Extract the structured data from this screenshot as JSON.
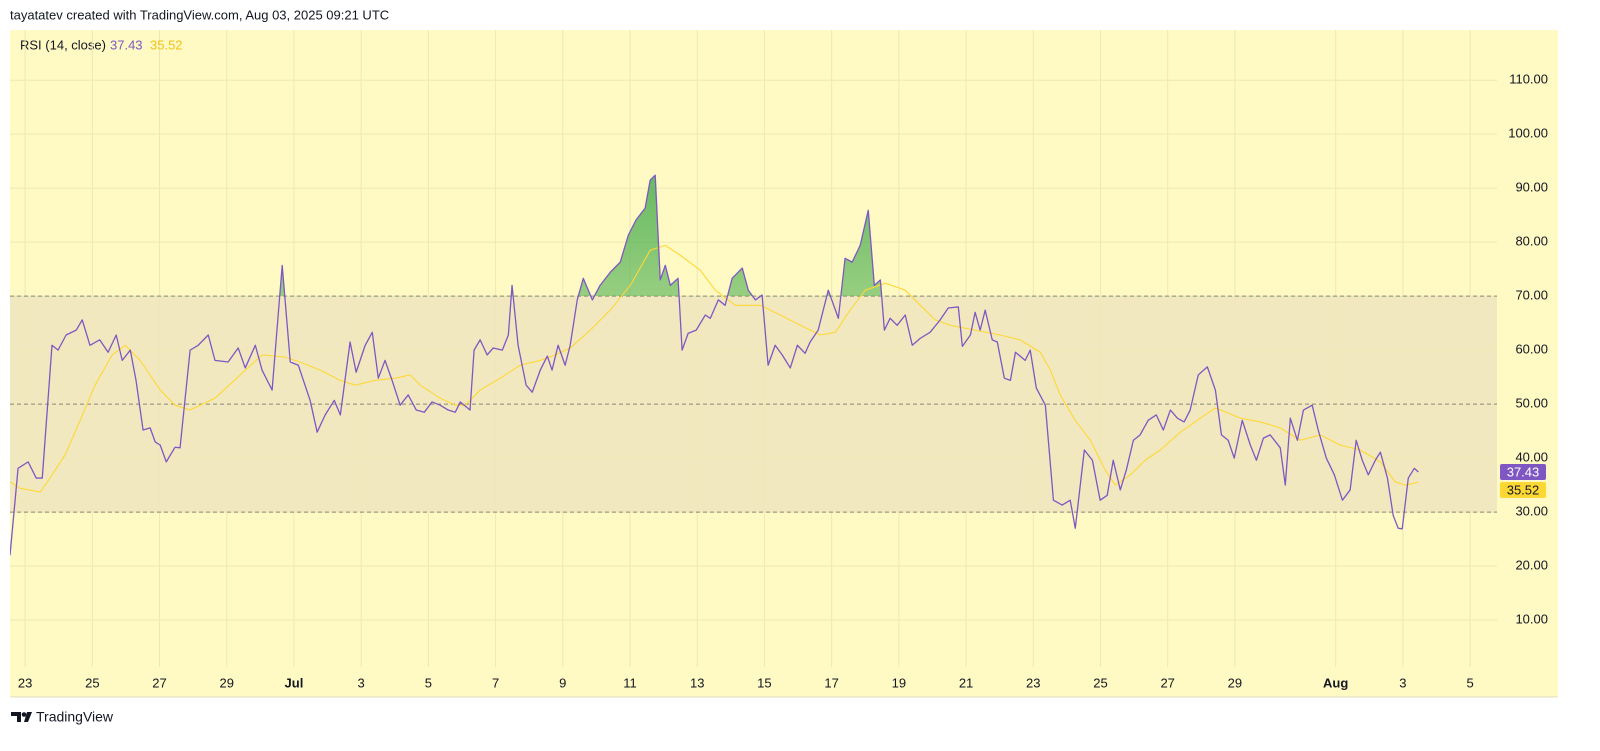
{
  "chart_data": {
    "type": "line",
    "header": "tayatatev created with TradingView.com, Aug 03, 2025 09:21 UTC",
    "indicator": "RSI (14, close)",
    "brand": "TradingView",
    "series": [
      {
        "color": "#7e57c2",
        "x": [
          22.55,
          22.79,
          23.09,
          23.33,
          23.51,
          23.8,
          23.98,
          24.22,
          24.52,
          24.7,
          24.93,
          25.22,
          25.47,
          25.71,
          25.89,
          26.13,
          26.3,
          26.51,
          26.72,
          26.87,
          27.02,
          27.2,
          27.46,
          27.61,
          27.91,
          28.15,
          28.45,
          28.65,
          29.04,
          29.34,
          29.55,
          29.85,
          30.05,
          30.35,
          30.65,
          30.89,
          31.13,
          31.48,
          31.69,
          31.93,
          32.2,
          32.38,
          32.67,
          32.85,
          33.12,
          33.33,
          33.51,
          33.71,
          33.92,
          34.16,
          34.4,
          34.64,
          34.88,
          35.11,
          35.35,
          35.59,
          35.8,
          35.95,
          36.24,
          36.36,
          36.54,
          36.75,
          36.93,
          37.2,
          37.38,
          37.49,
          37.67,
          37.91,
          38.09,
          38.33,
          38.54,
          38.68,
          38.86,
          39.07,
          39.22,
          39.43,
          39.61,
          39.88,
          40.11,
          40.41,
          40.71,
          40.95,
          41.18,
          41.45,
          41.6,
          41.75,
          41.9,
          42.05,
          42.2,
          42.43,
          42.55,
          42.73,
          42.97,
          43.24,
          43.39,
          43.63,
          43.83,
          44.04,
          44.34,
          44.52,
          44.73,
          44.93,
          45.11,
          45.32,
          45.53,
          45.77,
          45.98,
          46.21,
          46.36,
          46.6,
          46.9,
          47.2,
          47.4,
          47.61,
          47.85,
          48.09,
          48.27,
          48.45,
          48.57,
          48.74,
          48.95,
          49.19,
          49.4,
          49.64,
          49.93,
          50.23,
          50.47,
          50.77,
          50.89,
          51.13,
          51.27,
          51.42,
          51.57,
          51.78,
          51.93,
          52.14,
          52.32,
          52.47,
          52.76,
          52.91,
          53.09,
          53.36,
          53.6,
          53.86,
          54.1,
          54.25,
          54.52,
          54.76,
          54.99,
          55.2,
          55.38,
          55.59,
          55.77,
          55.98,
          56.18,
          56.42,
          56.66,
          56.87,
          57.08,
          57.29,
          57.49,
          57.67,
          57.91,
          58.18,
          58.42,
          58.6,
          58.8,
          58.98,
          59.22,
          59.46,
          59.64,
          59.85,
          60.05,
          60.35,
          60.5,
          60.65,
          60.86,
          61.04,
          61.3,
          61.48,
          61.72,
          61.96,
          62.2,
          62.43,
          62.61,
          62.79,
          62.97,
          63.18,
          63.33,
          63.54,
          63.71,
          63.86,
          63.98,
          64.16,
          64.34,
          64.46
        ],
        "values": [
          22.0,
          38.1,
          39.3,
          36.3,
          36.3,
          60.9,
          60.0,
          62.8,
          63.7,
          65.6,
          60.9,
          61.9,
          59.6,
          62.8,
          58.1,
          60.0,
          54.4,
          45.2,
          45.6,
          43.0,
          42.4,
          39.3,
          42.0,
          41.9,
          60.0,
          60.9,
          62.8,
          58.1,
          57.8,
          60.4,
          56.7,
          60.9,
          56.3,
          52.6,
          75.7,
          57.8,
          57.2,
          50.7,
          44.8,
          48.0,
          50.7,
          48.0,
          61.5,
          55.9,
          60.9,
          63.3,
          54.8,
          58.1,
          54.4,
          49.8,
          51.7,
          48.9,
          48.5,
          50.4,
          49.8,
          48.9,
          48.5,
          50.4,
          48.9,
          60.0,
          61.9,
          59.1,
          60.4,
          60.0,
          62.8,
          72.0,
          60.9,
          53.5,
          52.2,
          56.3,
          58.9,
          56.3,
          60.9,
          57.2,
          60.9,
          69.3,
          73.3,
          69.3,
          72.0,
          74.4,
          76.3,
          81.3,
          84.1,
          86.3,
          91.5,
          92.4,
          73.0,
          75.7,
          72.0,
          73.3,
          60.0,
          63.1,
          63.7,
          66.5,
          65.9,
          69.3,
          68.3,
          73.3,
          75.2,
          71.1,
          69.3,
          70.2,
          57.2,
          60.9,
          59.1,
          56.7,
          60.9,
          59.4,
          61.5,
          63.7,
          71.1,
          65.9,
          77.0,
          76.3,
          79.4,
          85.9,
          72.0,
          73.0,
          63.7,
          65.9,
          64.6,
          66.5,
          60.9,
          62.2,
          63.3,
          65.6,
          67.8,
          68.0,
          60.7,
          62.8,
          67.0,
          63.7,
          67.4,
          61.9,
          61.5,
          54.8,
          54.4,
          59.6,
          58.1,
          60.0,
          53.0,
          49.8,
          32.2,
          31.3,
          32.2,
          27.0,
          41.5,
          39.6,
          32.2,
          33.1,
          39.6,
          34.1,
          37.8,
          43.3,
          44.3,
          47.0,
          48.0,
          45.2,
          48.9,
          47.4,
          46.7,
          48.9,
          55.4,
          56.9,
          52.6,
          44.3,
          43.3,
          40.0,
          47.0,
          42.4,
          39.6,
          43.7,
          44.3,
          41.9,
          35.0,
          47.4,
          43.3,
          48.9,
          49.8,
          45.2,
          40.0,
          36.9,
          32.2,
          34.1,
          43.3,
          39.6,
          36.9,
          39.6,
          41.1,
          36.3,
          29.4,
          27.0,
          26.9,
          36.3,
          38.1,
          37.43
        ]
      },
      {
        "color": "#fdd835",
        "x": [
          22.55,
          22.85,
          23.45,
          23.74,
          24.19,
          24.64,
          25.08,
          25.59,
          25.98,
          26.42,
          27.02,
          27.46,
          27.91,
          28.65,
          29.4,
          30.05,
          30.74,
          31.18,
          31.78,
          32.38,
          32.82,
          33.42,
          34.01,
          34.46,
          34.76,
          35.35,
          35.8,
          36.1,
          36.54,
          37.14,
          37.73,
          38.33,
          38.77,
          39.22,
          39.82,
          40.41,
          41.01,
          41.6,
          42.05,
          42.49,
          43.09,
          43.54,
          44.13,
          44.88,
          45.47,
          46.07,
          46.66,
          47.11,
          47.55,
          48.0,
          48.6,
          49.19,
          49.64,
          50.08,
          50.53,
          51.27,
          52.02,
          52.61,
          53.21,
          53.51,
          53.8,
          54.25,
          54.7,
          55.14,
          55.44,
          55.89,
          56.33,
          56.78,
          57.38,
          57.97,
          58.42,
          59.16,
          59.76,
          60.35,
          60.95,
          61.54,
          62.14,
          62.73,
          63.33,
          63.77,
          64.07,
          64.46
        ],
        "values": [
          35.6,
          34.4,
          33.7,
          36.3,
          40.6,
          47.0,
          53.5,
          59.1,
          60.9,
          58.1,
          52.6,
          49.8,
          48.9,
          51.1,
          55.4,
          59.1,
          58.7,
          57.8,
          56.3,
          54.4,
          53.5,
          54.4,
          54.8,
          55.4,
          53.5,
          51.1,
          49.8,
          49.8,
          52.6,
          54.8,
          57.2,
          58.1,
          59.1,
          60.4,
          63.7,
          67.4,
          72.0,
          78.5,
          79.4,
          77.6,
          74.8,
          71.1,
          68.3,
          68.3,
          66.5,
          64.6,
          62.8,
          63.3,
          67.4,
          71.1,
          72.4,
          71.1,
          68.3,
          65.6,
          64.6,
          63.7,
          62.8,
          61.9,
          59.6,
          56.3,
          51.7,
          47.0,
          43.3,
          37.8,
          35.0,
          36.9,
          39.6,
          41.5,
          44.8,
          47.4,
          49.3,
          47.4,
          46.7,
          45.6,
          43.3,
          44.3,
          42.4,
          41.5,
          39.3,
          35.6,
          35.0,
          35.52
        ]
      }
    ],
    "bands": {
      "upper": 70,
      "middle": 50,
      "lower": 30
    },
    "xlim": [
      22.55,
      66.8
    ],
    "xticks": [
      23,
      25,
      27,
      29,
      {
        "value": 31,
        "label": "Jul"
      },
      {
        "value": 33,
        "label": "3"
      },
      {
        "value": 35,
        "label": "5"
      },
      {
        "value": 37,
        "label": "7"
      },
      {
        "value": 39,
        "label": "9"
      },
      {
        "value": 41,
        "label": "11"
      },
      {
        "value": 43,
        "label": "13"
      },
      {
        "value": 45,
        "label": "15"
      },
      {
        "value": 47,
        "label": "17"
      },
      {
        "value": 49,
        "label": "19"
      },
      {
        "value": 51,
        "label": "21"
      },
      {
        "value": 53,
        "label": "23"
      },
      {
        "value": 55,
        "label": "25"
      },
      {
        "value": 57,
        "label": "27"
      },
      {
        "value": 59,
        "label": "29"
      },
      {
        "value": 62,
        "label": "Aug"
      },
      {
        "value": 64,
        "label": "3"
      },
      {
        "value": 66,
        "label": "5"
      }
    ],
    "ylim": [
      1.3,
      119.3
    ],
    "yticks": [
      {
        "value": 10,
        "label": "10.00"
      },
      {
        "value": 20,
        "label": "20.00"
      },
      {
        "value": 30,
        "label": "30.00"
      },
      {
        "value": 40,
        "label": "40.00"
      },
      {
        "value": 50,
        "label": "50.00"
      },
      {
        "value": 60,
        "label": "60.00"
      },
      {
        "value": 70,
        "label": "70.00"
      },
      {
        "value": 80,
        "label": "80.00"
      },
      {
        "value": 90,
        "label": "90.00"
      },
      {
        "value": 100,
        "label": "100.00"
      },
      {
        "value": 110,
        "label": "110.00"
      }
    ],
    "grid": true
  }
}
